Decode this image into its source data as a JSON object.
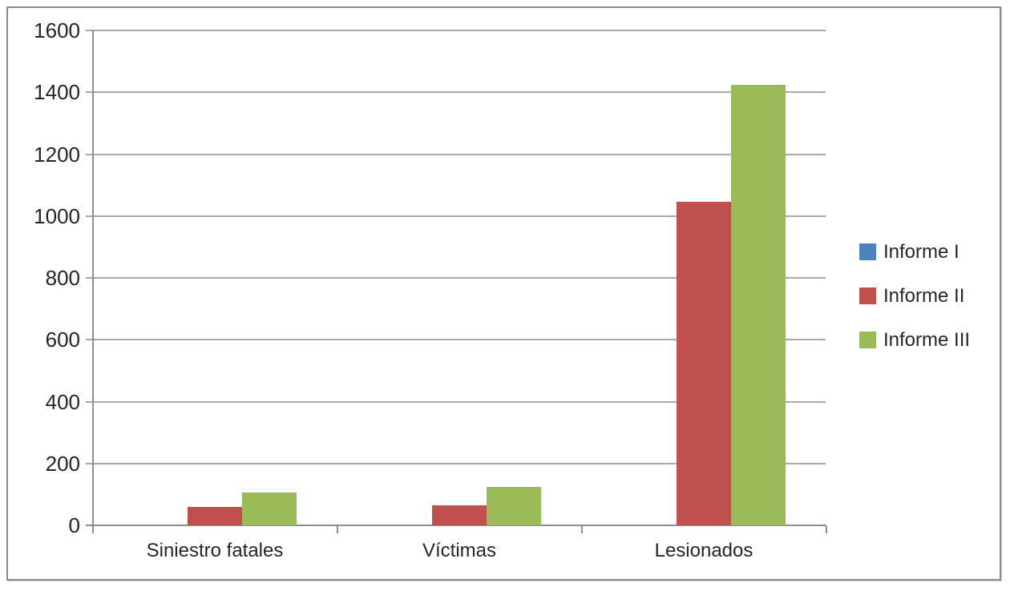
{
  "chart_data": {
    "type": "bar",
    "title": "",
    "xlabel": "",
    "ylabel": "",
    "categories": [
      "Siniestro fatales",
      "Víctimas",
      "Lesionados"
    ],
    "series": [
      {
        "name": "Informe I",
        "color": "#4F81BD",
        "values": [
          0,
          0,
          0
        ]
      },
      {
        "name": "Informe II",
        "color": "#C0504D",
        "values": [
          60,
          65,
          1045
        ]
      },
      {
        "name": "Informe III",
        "color": "#9BBB59",
        "values": [
          105,
          125,
          1425
        ]
      }
    ],
    "ylim": [
      0,
      1600
    ],
    "ytick_interval": 200,
    "yticks": [
      0,
      200,
      400,
      600,
      800,
      1000,
      1200,
      1400,
      1600
    ],
    "grid": true,
    "legend_position": "right"
  }
}
